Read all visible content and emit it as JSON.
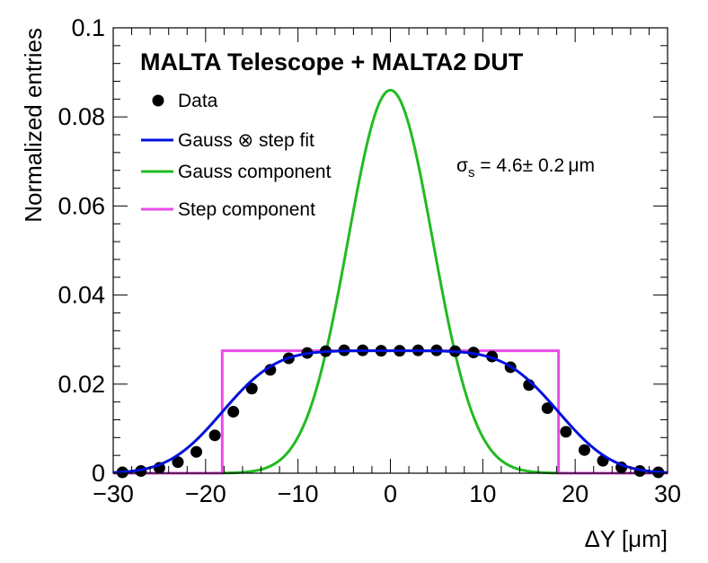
{
  "chart_data": {
    "type": "line",
    "title": "MALTA Telescope + MALTA2 DUT",
    "xlabel": "ΔY [μm]",
    "ylabel": "Normalized entries",
    "xlim": [
      -30,
      30
    ],
    "ylim": [
      0,
      0.1
    ],
    "x_ticks": [
      -30,
      -20,
      -10,
      0,
      10,
      20,
      30
    ],
    "x_tick_labels": [
      "−30",
      "−20",
      "−10",
      "0",
      "10",
      "20",
      "30"
    ],
    "y_ticks": [
      0,
      0.02,
      0.04,
      0.06,
      0.08,
      0.1
    ],
    "y_tick_labels": [
      "0",
      "0.02",
      "0.04",
      "0.06",
      "0.08",
      "0.1"
    ],
    "grid": false,
    "annotation": {
      "symbol": "σ",
      "subscript": "s",
      "text": " = 4.6± 0.2 μm",
      "value": 4.6,
      "error": 0.2
    },
    "legend_position": "top-left",
    "series": [
      {
        "name": "Data",
        "kind": "points",
        "color": "#000000",
        "x": [
          -29,
          -27,
          -25,
          -23,
          -21,
          -19,
          -17,
          -15,
          -13,
          -11,
          -9,
          -7,
          -5,
          -3,
          -1,
          1,
          3,
          5,
          7,
          9,
          11,
          13,
          15,
          17,
          19,
          21,
          23,
          25,
          27,
          29
        ],
        "values": [
          0.0002,
          0.0005,
          0.0012,
          0.0025,
          0.0048,
          0.0085,
          0.0138,
          0.019,
          0.0232,
          0.0258,
          0.027,
          0.0274,
          0.0276,
          0.0276,
          0.0275,
          0.0275,
          0.0276,
          0.0276,
          0.0274,
          0.0271,
          0.0262,
          0.0238,
          0.0198,
          0.0146,
          0.0093,
          0.0052,
          0.0028,
          0.0013,
          0.0005,
          0.0002
        ]
      },
      {
        "name": "Gauss ⊗ step fit",
        "kind": "conv_fit",
        "color": "#0011dd",
        "half_width": 18.2,
        "sigma": 4.6,
        "amplitude": 0.0275
      },
      {
        "name": "Gauss component",
        "kind": "gauss",
        "color": "#22bb22",
        "mean": 0,
        "sigma": 4.6,
        "amplitude": 0.086
      },
      {
        "name": "Step component",
        "kind": "step",
        "color": "#e84ce8",
        "x_low": -18.2,
        "x_high": 18.2,
        "amplitude": 0.0275
      }
    ]
  }
}
